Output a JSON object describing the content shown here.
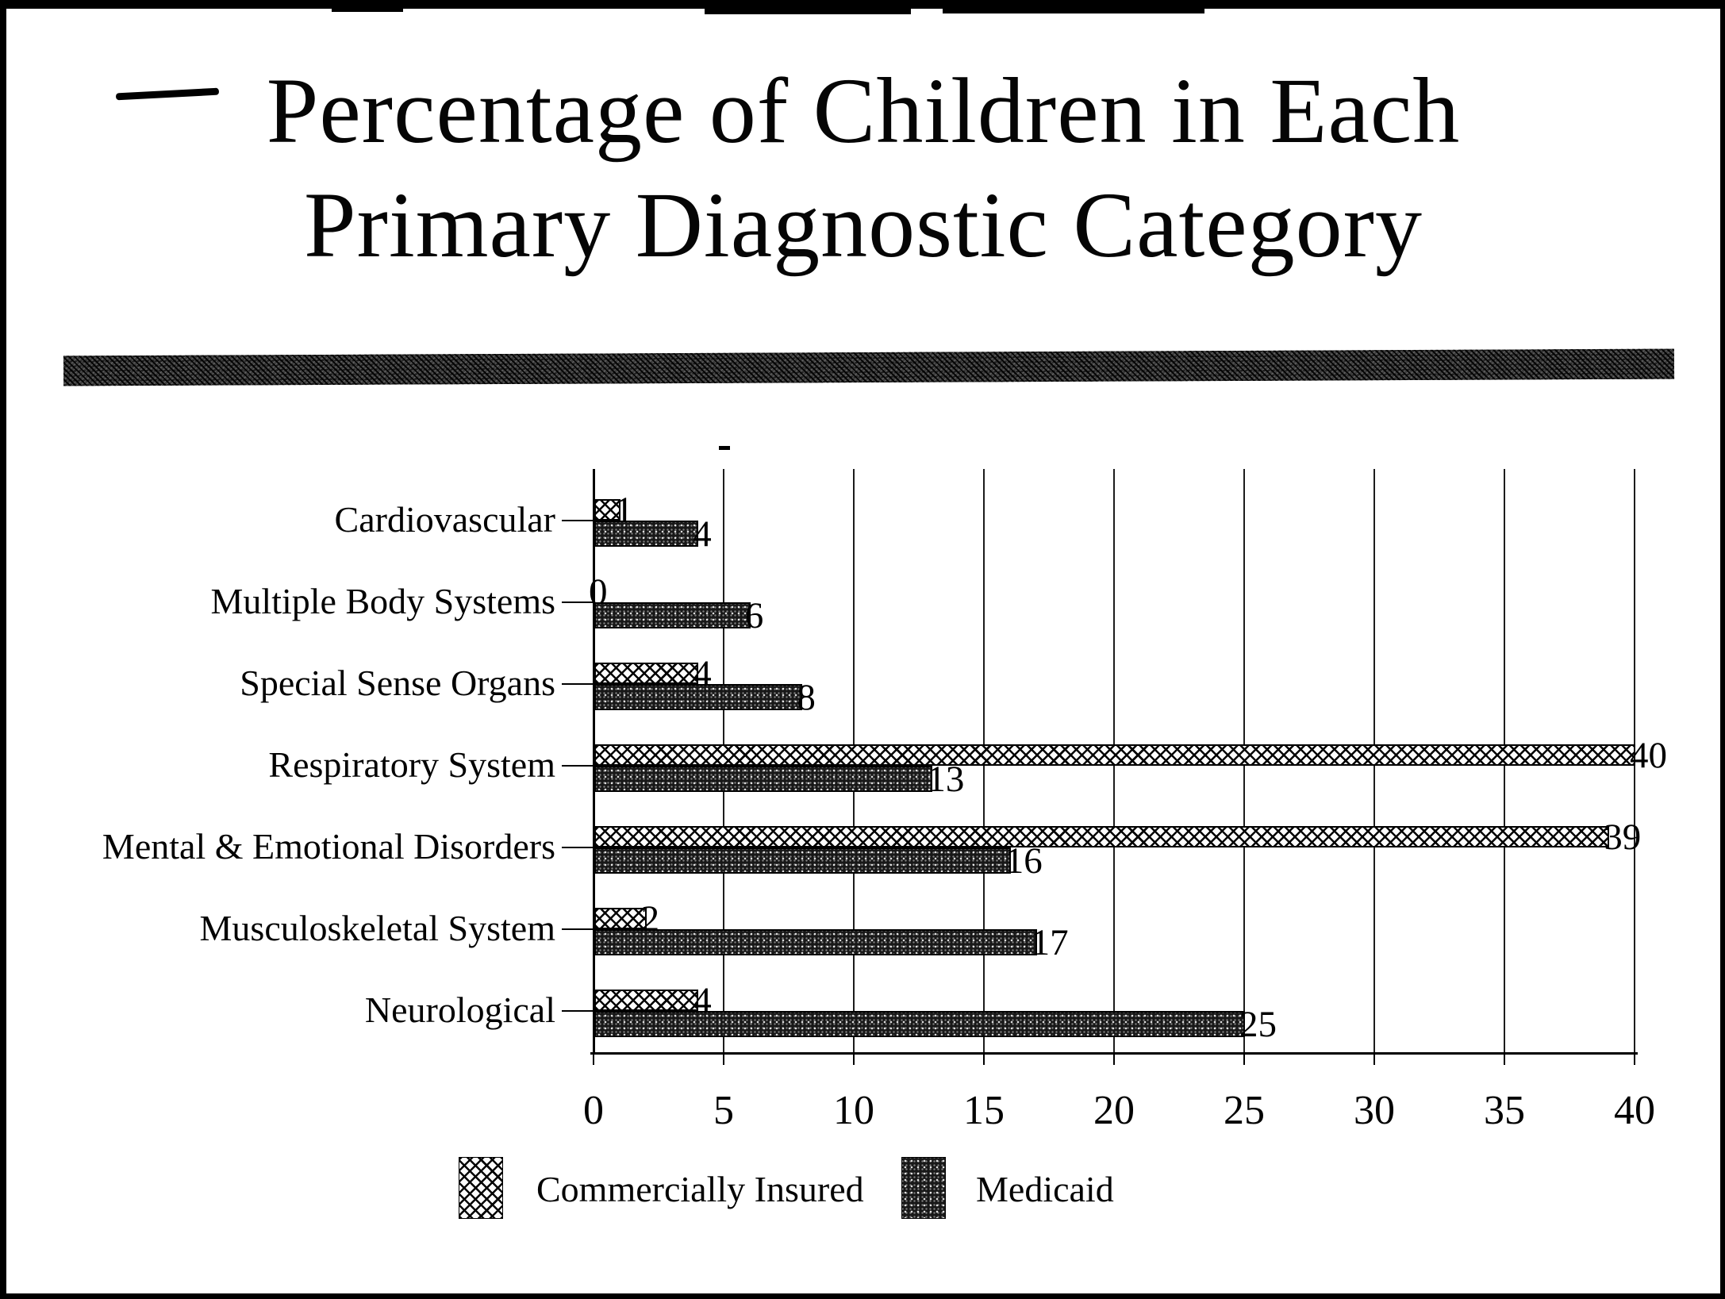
{
  "title": {
    "line1": "Percentage of Children in Each",
    "line2": "Primary Diagnostic Category"
  },
  "colors": {
    "ink": "#000000",
    "paper": "#ffffff",
    "bar_dark": "#181818"
  },
  "chart_data": {
    "type": "bar",
    "orientation": "horizontal",
    "title": "Percentage of Children in Each Primary Diagnostic Category",
    "categories": [
      "Cardiovascular",
      "Multiple Body Systems",
      "Special Sense Organs",
      "Respiratory System",
      "Mental & Emotional Disorders",
      "Musculoskeletal System",
      "Neurological"
    ],
    "series": [
      {
        "name": "Commercially Insured",
        "pattern": "crosshatch-light",
        "values": [
          1,
          0,
          4,
          40,
          39,
          2,
          4
        ]
      },
      {
        "name": "Medicaid",
        "pattern": "speckled-dark",
        "values": [
          4,
          6,
          8,
          13,
          16,
          17,
          25
        ]
      }
    ],
    "xlim": [
      0,
      40
    ],
    "x_ticks": [
      0,
      5,
      10,
      15,
      20,
      25,
      30,
      35,
      40
    ],
    "grid": "vertical",
    "data_labels": true,
    "legend_position": "bottom",
    "xlabel": "",
    "ylabel": ""
  }
}
